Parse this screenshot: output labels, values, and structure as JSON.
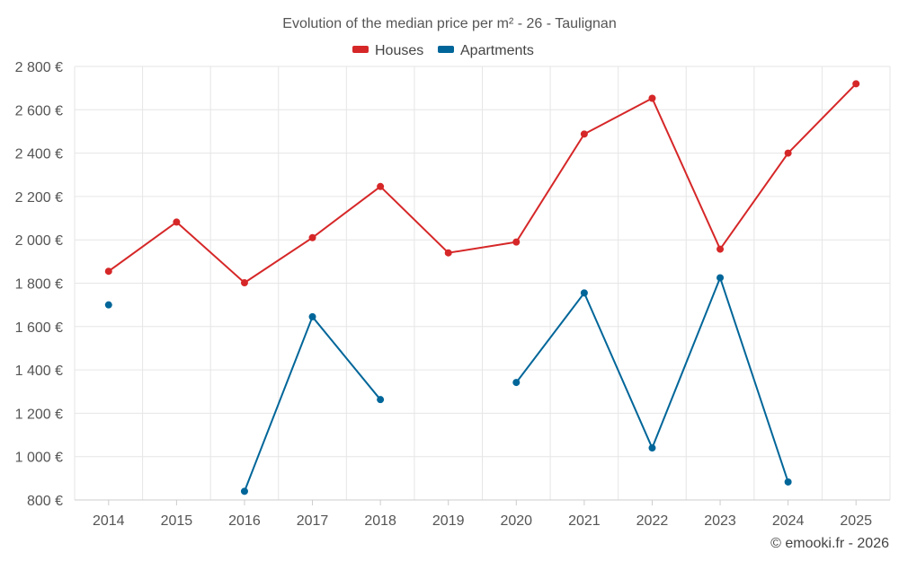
{
  "chart_data": {
    "type": "line",
    "title": "Evolution of the median price per m² - 26 - Taulignan",
    "credit": "© emooki.fr - 2026",
    "categories": [
      "2014",
      "2015",
      "2016",
      "2017",
      "2018",
      "2019",
      "2020",
      "2021",
      "2022",
      "2023",
      "2024",
      "2025"
    ],
    "ylim": [
      800,
      2800
    ],
    "yticks": [
      800,
      1000,
      1200,
      1400,
      1600,
      1800,
      2000,
      2200,
      2400,
      2600,
      2800
    ],
    "ytick_labels": [
      "800 €",
      "1 000 €",
      "1 200 €",
      "1 400 €",
      "1 600 €",
      "1 800 €",
      "2 000 €",
      "2 200 €",
      "2 400 €",
      "2 600 €",
      "2 800 €"
    ],
    "legend_position": "top-center",
    "series": [
      {
        "name": "Houses",
        "color": "#d62728",
        "values": [
          1855,
          2082,
          1802,
          2010,
          2246,
          1940,
          1990,
          2488,
          2653,
          1957,
          2400,
          2720
        ]
      },
      {
        "name": "Apartments",
        "color": "#006699",
        "values": [
          1700,
          null,
          840,
          1645,
          1263,
          null,
          1342,
          1755,
          1040,
          1825,
          883,
          null
        ]
      }
    ]
  }
}
